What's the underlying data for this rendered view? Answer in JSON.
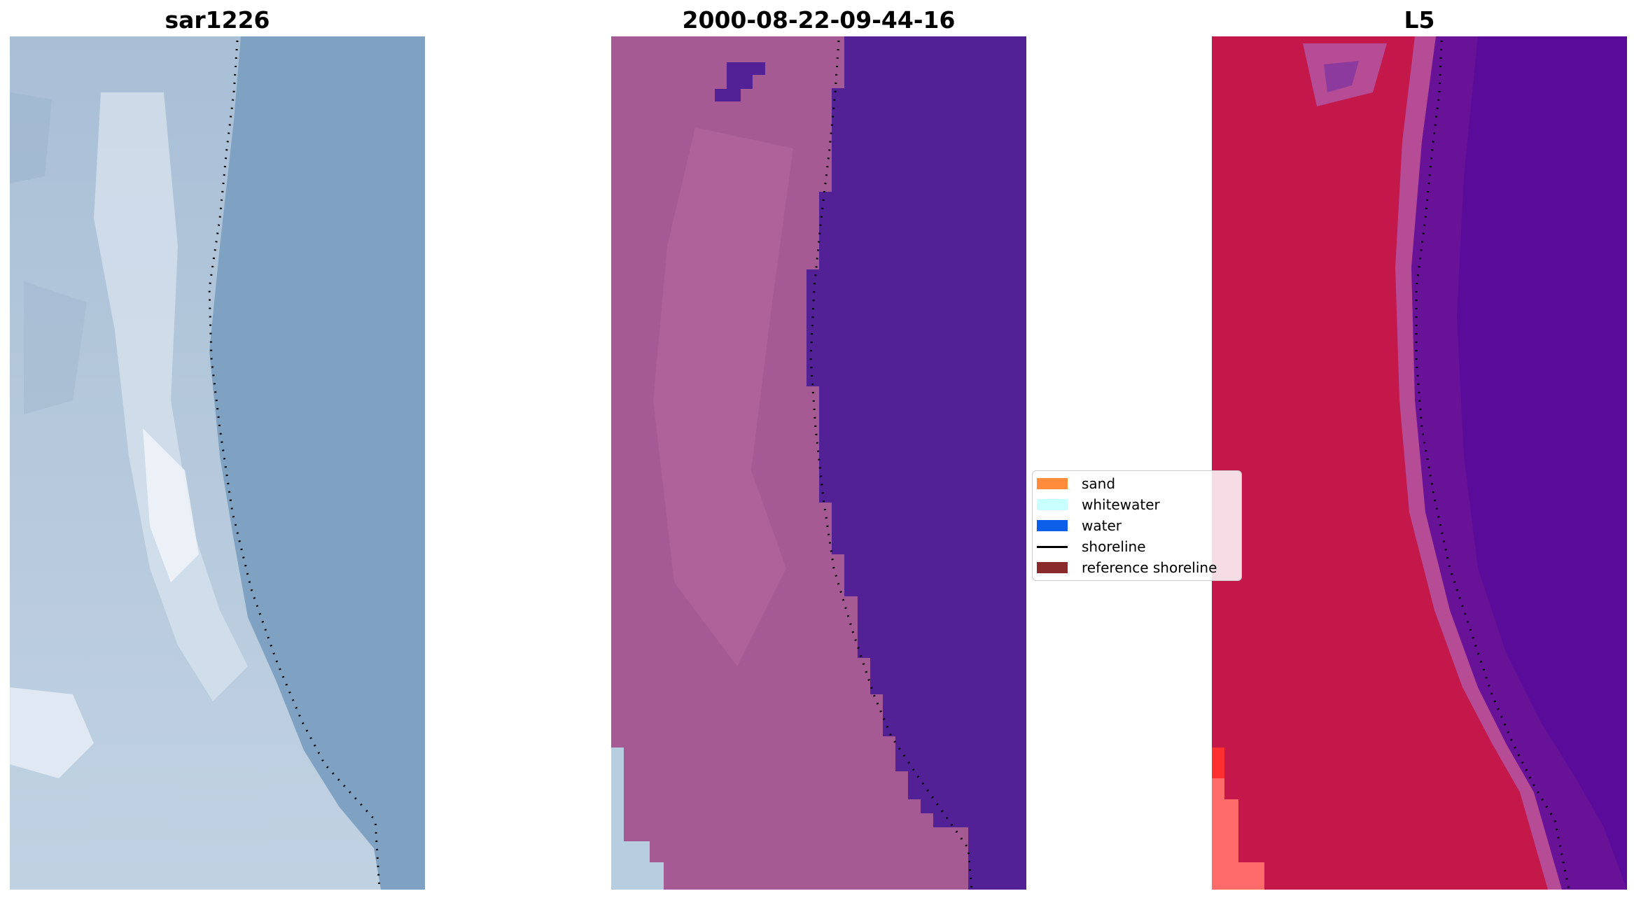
{
  "panels": [
    {
      "title": "sar1226"
    },
    {
      "title": "2000-08-22-09-44-16"
    },
    {
      "title": "L5"
    }
  ],
  "legend": {
    "items": [
      {
        "label": "sand",
        "color": "#ff8c3c",
        "kind": "patch"
      },
      {
        "label": "whitewater",
        "color": "#c8ffff",
        "kind": "patch"
      },
      {
        "label": "water",
        "color": "#0d5ee8",
        "kind": "patch"
      },
      {
        "label": "shoreline",
        "color": "#000000",
        "kind": "line"
      },
      {
        "label": "reference shoreline",
        "color": "#8b2a2a",
        "kind": "patch"
      }
    ]
  },
  "colors": {
    "rgb_land": "#b9cadb",
    "rgb_water": "#7c9fc0",
    "classified_land": "#a65a93",
    "classified_water": "#532196",
    "classified_whitewater": "#b7cde0",
    "ndwi_land": "#c4174a",
    "ndwi_water": "#5a0b9a",
    "ndwi_edge": "#b54c95",
    "ndwi_low": "#ff6b6b"
  }
}
